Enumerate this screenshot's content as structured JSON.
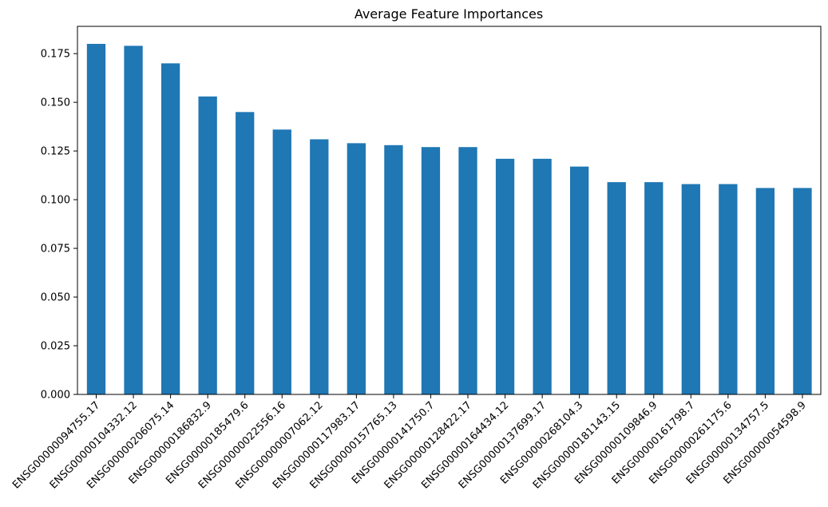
{
  "chart_data": {
    "type": "bar",
    "title": "Average Feature Importances",
    "xlabel": "",
    "ylabel": "",
    "ylim": [
      0,
      0.189
    ],
    "yticks": [
      "0.000",
      "0.025",
      "0.050",
      "0.075",
      "0.100",
      "0.125",
      "0.150",
      "0.175"
    ],
    "grid": false,
    "bar_color": "#1f77b4",
    "categories": [
      "ENSG00000094755.17",
      "ENSG00000104332.12",
      "ENSG00000206075.14",
      "ENSG00000186832.9",
      "ENSG00000185479.6",
      "ENSG00000022556.16",
      "ENSG00000007062.12",
      "ENSG00000117983.17",
      "ENSG00000157765.13",
      "ENSG00000141750.7",
      "ENSG00000128422.17",
      "ENSG00000164434.12",
      "ENSG00000137699.17",
      "ENSG00000268104.3",
      "ENSG00000181143.15",
      "ENSG00000109846.9",
      "ENSG00000161798.7",
      "ENSG00000261175.6",
      "ENSG00000134757.5",
      "ENSG00000054598.9"
    ],
    "values": [
      0.18,
      0.179,
      0.17,
      0.153,
      0.145,
      0.136,
      0.131,
      0.129,
      0.128,
      0.127,
      0.127,
      0.121,
      0.121,
      0.117,
      0.109,
      0.109,
      0.108,
      0.108,
      0.106,
      0.106
    ]
  }
}
